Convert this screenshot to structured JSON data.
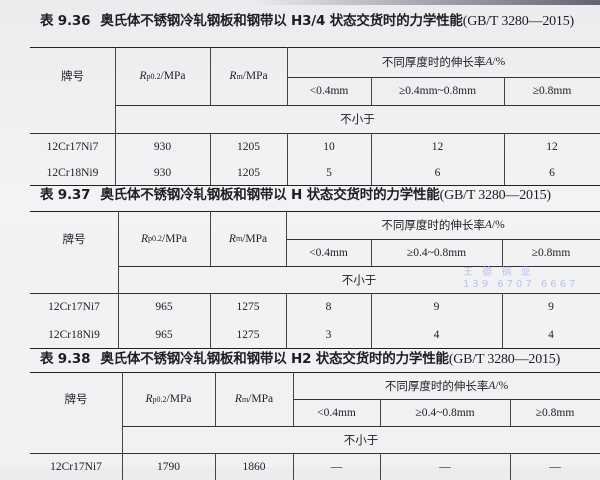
{
  "watermark": {
    "line1": "王 德 钢 业",
    "line2": "139 6707 6667"
  },
  "tables": [
    {
      "number": "表 9.36",
      "title": "奥氏体不锈钢冷轧钢板和钢带以 H3/4 状态交货时的力学性能",
      "standard": "(GB/T 3280—2015)",
      "headers": {
        "grade": "牌号",
        "rp_symbol": "R",
        "rp_sub": "p0.2",
        "rp_unit": "/MPa",
        "rm_symbol": "R",
        "rm_sub": "m",
        "rm_unit": "/MPa",
        "elong_group_prefix": "不同厚度时的伸长率 ",
        "elong_symbol": "A",
        "elong_unit": "/%",
        "thickness": [
          "<0.4mm",
          "≥0.4mm~0.8mm",
          "≥0.8mm"
        ],
        "min_label": "不小于"
      },
      "rows": [
        [
          "12Cr17Ni7",
          "930",
          "1205",
          "10",
          "12",
          "12"
        ],
        [
          "12Cr18Ni9",
          "930",
          "1205",
          "5",
          "6",
          "6"
        ]
      ]
    },
    {
      "number": "表 9.37",
      "title": "奥氏体不锈钢冷轧钢板和钢带以 H 状态交货时的力学性能",
      "standard": "(GB/T 3280—2015)",
      "headers": {
        "grade": "牌号",
        "rp_symbol": "R",
        "rp_sub": "p0.2",
        "rp_unit": "/MPa",
        "rm_symbol": "R",
        "rm_sub": "m",
        "rm_unit": "/MPa",
        "elong_group_prefix": "不同厚度时的伸长率 ",
        "elong_symbol": "A",
        "elong_unit": "/%",
        "thickness": [
          "<0.4mm",
          "≥0.4~0.8mm",
          "≥0.8mm"
        ],
        "min_label": "不小于"
      },
      "rows": [
        [
          "12Cr17Ni7",
          "965",
          "1275",
          "8",
          "9",
          "9"
        ],
        [
          "12Cr18Ni9",
          "965",
          "1275",
          "3",
          "4",
          "4"
        ]
      ]
    },
    {
      "number": "表 9.38",
      "title": "奥氏体不锈钢冷轧钢板和钢带以 H2 状态交货时的力学性能",
      "standard": "(GB/T 3280—2015)",
      "headers": {
        "grade": "牌号",
        "rp_symbol": "R",
        "rp_sub": "p0.2",
        "rp_unit": "/MPa",
        "rm_symbol": "R",
        "rm_sub": "m",
        "rm_unit": "/MPa",
        "elong_group_prefix": "不同厚度时的伸长率 ",
        "elong_symbol": "A",
        "elong_unit": "/%",
        "thickness": [
          "<0.4mm",
          "≥0.4~0.8mm",
          "≥0.8mm"
        ],
        "min_label": "不小于"
      },
      "rows": [
        [
          "12Cr17Ni7",
          "1790",
          "1860",
          "—",
          "—",
          "—"
        ]
      ]
    }
  ]
}
